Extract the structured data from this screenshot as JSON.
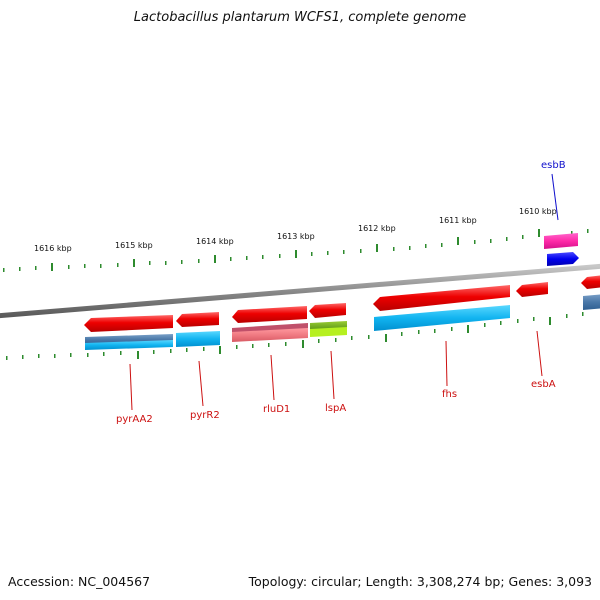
{
  "title": "Lactobacillus plantarum WCFS1, complete genome",
  "footer": {
    "accession": "Accession: NC_004567",
    "summary": "Topology: circular; Length: 3,308,274 bp; Genes: 3,093"
  },
  "colors": {
    "backbone": "#8a8a8a",
    "tick": "#2e8b2e",
    "label_red": "#cc1010",
    "label_blue": "#1010cc"
  },
  "ruler_labels": [
    "1616 kbp",
    "1615 kbp",
    "1614 kbp",
    "1613 kbp",
    "1612 kbp",
    "1611 kbp",
    "1610 kbp"
  ],
  "genes": [
    {
      "name": "pyrAA2",
      "color": "#cc1010"
    },
    {
      "name": "pyrR2",
      "color": "#cc1010"
    },
    {
      "name": "rluD1",
      "color": "#cc1010"
    },
    {
      "name": "lspA",
      "color": "#cc1010"
    },
    {
      "name": "fhs",
      "color": "#cc1010"
    },
    {
      "name": "esbA",
      "color": "#cc1010"
    },
    {
      "name": "esbB",
      "color": "#1010cc"
    }
  ]
}
